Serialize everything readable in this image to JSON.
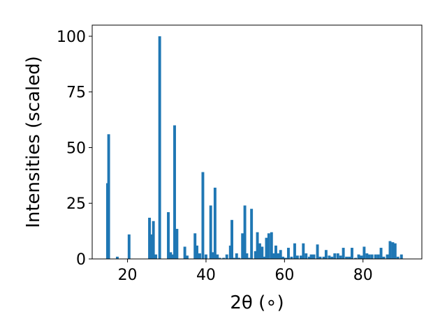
{
  "chart_data": {
    "type": "bar",
    "title": "",
    "xlabel": "2θ (∘)",
    "ylabel": "Intensities (scaled)",
    "xlim": [
      11,
      95
    ],
    "ylim": [
      0,
      105
    ],
    "x_ticks": [
      20,
      40,
      60,
      80
    ],
    "y_ticks": [
      0,
      25,
      50,
      75,
      100
    ],
    "x_tick_labels": [
      "20",
      "40",
      "60",
      "80"
    ],
    "y_tick_labels": [
      "0",
      "25",
      "50",
      "75",
      "100"
    ],
    "grid": false,
    "bar_color": "#1f77b4",
    "bar_width": 0.7,
    "x": [
      14.9,
      15.2,
      17.4,
      20.4,
      25.6,
      26.1,
      26.6,
      27.2,
      28.2,
      30.4,
      31.0,
      31.5,
      32.0,
      32.6,
      34.6,
      35.2,
      37.2,
      37.7,
      38.4,
      39.2,
      40.0,
      41.2,
      41.7,
      42.3,
      42.9,
      43.5,
      44.5,
      45.3,
      46.2,
      46.6,
      47.1,
      47.8,
      48.4,
      49.3,
      49.9,
      50.4,
      50.9,
      51.6,
      52.6,
      53.1,
      53.7,
      54.3,
      54.8,
      55.4,
      56.0,
      56.7,
      57.3,
      57.8,
      58.4,
      59.0,
      59.6,
      60.3,
      61.0,
      61.8,
      62.6,
      63.3,
      64.2,
      64.8,
      65.5,
      66.3,
      66.8,
      67.5,
      68.4,
      69.1,
      70.0,
      70.6,
      71.4,
      72.1,
      72.8,
      73.6,
      74.3,
      75.0,
      75.8,
      76.5,
      77.2,
      78.1,
      78.9,
      79.6,
      80.3,
      81.0,
      81.6,
      82.3,
      83.2,
      83.9,
      84.6,
      85.3,
      86.2,
      86.9,
      87.6,
      88.2,
      88.9,
      89.8
    ],
    "values": [
      34.0,
      56.0,
      1.0,
      11.0,
      18.5,
      11.0,
      17.0,
      2.0,
      100.0,
      21.0,
      3.0,
      2.0,
      60.0,
      13.5,
      5.5,
      1.5,
      11.5,
      6.0,
      2.5,
      39.0,
      2.0,
      24.0,
      3.0,
      32.0,
      2.0,
      0.5,
      0.5,
      2.0,
      6.0,
      17.5,
      0.5,
      2.5,
      0.5,
      11.5,
      24.0,
      2.5,
      0.5,
      22.5,
      3.5,
      12.0,
      7.0,
      5.5,
      1.0,
      9.5,
      11.5,
      12.0,
      2.5,
      6.0,
      2.5,
      4.0,
      1.0,
      0.5,
      5.0,
      1.0,
      7.0,
      1.5,
      1.5,
      7.0,
      2.5,
      1.0,
      2.0,
      2.0,
      6.5,
      1.0,
      1.0,
      4.0,
      1.5,
      1.0,
      2.5,
      2.5,
      1.5,
      5.0,
      1.0,
      1.0,
      5.0,
      0.5,
      2.0,
      1.5,
      5.5,
      2.5,
      2.0,
      2.0,
      2.0,
      2.0,
      5.0,
      1.0,
      2.0,
      8.0,
      7.5,
      7.0,
      1.0,
      2.0
    ]
  }
}
